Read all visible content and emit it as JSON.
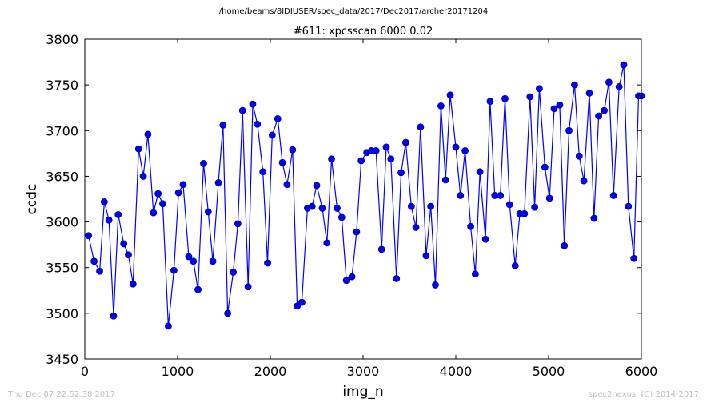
{
  "header": {
    "path": "/home/beams/8IDIUSER/spec_data/2017/Dec2017/archer20171204"
  },
  "footer": {
    "timestamp": "Thu Dec 07 22:52:38 2017",
    "credit": "spec2nexus, (C) 2014-2017"
  },
  "colors": {
    "series": "#0000ff",
    "marker_edge": "#000080"
  },
  "chart_data": {
    "type": "line",
    "title": "#611: xpcsscan 6000 0.02",
    "xlabel": "img_n",
    "ylabel": "ccdc",
    "xlim": [
      0,
      6000
    ],
    "ylim": [
      3450,
      3800
    ],
    "xticks": [
      0,
      1000,
      2000,
      3000,
      4000,
      5000,
      6000
    ],
    "yticks": [
      3450,
      3500,
      3550,
      3600,
      3650,
      3700,
      3750,
      3800
    ],
    "grid": false,
    "legend": "none",
    "series": [
      {
        "x": [
          40,
          100,
          160,
          210,
          260,
          310,
          360,
          420,
          470,
          520,
          580,
          630,
          680,
          740,
          790,
          840,
          900,
          960,
          1010,
          1060,
          1120,
          1170,
          1220,
          1280,
          1330,
          1380,
          1440,
          1490,
          1540,
          1600,
          1650,
          1700,
          1760,
          1810,
          1860,
          1920,
          1970,
          2020,
          2080,
          2130,
          2180,
          2240,
          2290,
          2340,
          2400,
          2450,
          2500,
          2560,
          2610,
          2660,
          2720,
          2770,
          2820,
          2880,
          2930,
          2980,
          3040,
          3090,
          3140,
          3200,
          3250,
          3300,
          3360,
          3410,
          3460,
          3520,
          3570,
          3620,
          3680,
          3730,
          3780,
          3840,
          3890,
          3940,
          4000,
          4050,
          4100,
          4160,
          4210,
          4260,
          4320,
          4370,
          4420,
          4480,
          4530,
          4580,
          4640,
          4690,
          4740,
          4800,
          4850,
          4900,
          4960,
          5010,
          5060,
          5120,
          5170,
          5220,
          5280,
          5330,
          5380,
          5440,
          5490,
          5540,
          5600,
          5650,
          5700,
          5760,
          5810,
          5860,
          5920,
          5970,
          6000
        ],
        "y": [
          3585,
          3557,
          3546,
          3622,
          3602,
          3497,
          3608,
          3576,
          3564,
          3532,
          3680,
          3650,
          3696,
          3610,
          3631,
          3620,
          3486,
          3547,
          3632,
          3641,
          3562,
          3557,
          3526,
          3664,
          3611,
          3557,
          3643,
          3706,
          3500,
          3545,
          3598,
          3722,
          3529,
          3729,
          3707,
          3655,
          3555,
          3695,
          3713,
          3665,
          3641,
          3679,
          3508,
          3512,
          3615,
          3617,
          3640,
          3615,
          3577,
          3669,
          3615,
          3605,
          3536,
          3540,
          3589,
          3667,
          3676,
          3678,
          3678,
          3570,
          3682,
          3669,
          3538,
          3654,
          3687,
          3617,
          3594,
          3704,
          3563,
          3617,
          3531,
          3727,
          3646,
          3739,
          3682,
          3629,
          3678,
          3595,
          3543,
          3655,
          3581,
          3732,
          3629,
          3629,
          3735,
          3619,
          3552,
          3609,
          3609,
          3737,
          3616,
          3746,
          3660,
          3626,
          3724,
          3728,
          3574,
          3700,
          3750,
          3672,
          3645,
          3741,
          3604,
          3716,
          3722,
          3753,
          3629,
          3748,
          3772,
          3617,
          3560,
          3738,
          3738
        ]
      }
    ]
  }
}
